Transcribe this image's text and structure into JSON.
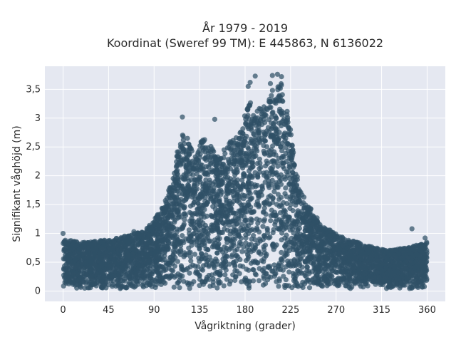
{
  "chart_data": {
    "type": "scatter",
    "title_line1": "År 1979 - 2019",
    "title_line2": "Koordinat (Sweref 99 TM): E 445863, N 6136022",
    "xlabel": "Vågriktning (grader)",
    "ylabel": "Signifikant våghöjd (m)",
    "xlim": [
      -18,
      378
    ],
    "ylim": [
      -0.18,
      3.9
    ],
    "xticks": [
      0,
      45,
      90,
      135,
      180,
      225,
      270,
      315,
      360
    ],
    "xtick_labels": [
      "0",
      "45",
      "90",
      "135",
      "180",
      "225",
      "270",
      "315",
      "360"
    ],
    "yticks": [
      0,
      0.5,
      1,
      1.5,
      2,
      2.5,
      3,
      3.5
    ],
    "ytick_labels": [
      "0",
      "0,5",
      "1",
      "1,5",
      "2",
      "2,5",
      "3",
      "3,5"
    ],
    "grid": true,
    "legend": "none",
    "point_color": "#2f5066",
    "background_color": "#e5e8f1",
    "envelope": {
      "x": [
        0,
        20,
        40,
        60,
        80,
        90,
        100,
        110,
        115,
        120,
        125,
        130,
        135,
        140,
        145,
        150,
        155,
        160,
        165,
        170,
        175,
        180,
        185,
        190,
        195,
        200,
        205,
        210,
        215,
        220,
        225,
        230,
        240,
        250,
        260,
        270,
        280,
        300,
        320,
        340,
        360
      ],
      "y_max": [
        0.9,
        0.85,
        0.88,
        0.95,
        1.05,
        1.25,
        1.5,
        2.1,
        2.65,
        2.75,
        2.6,
        2.35,
        2.55,
        2.7,
        2.55,
        2.4,
        2.3,
        2.5,
        2.6,
        2.7,
        2.75,
        3.1,
        3.3,
        3.15,
        3.2,
        3.25,
        3.5,
        3.55,
        3.65,
        3.3,
        2.8,
        2.1,
        1.55,
        1.3,
        1.1,
        1.0,
        0.9,
        0.8,
        0.7,
        0.75,
        0.85
      ]
    },
    "outliers": [
      {
        "x": 0,
        "y": 1.0
      },
      {
        "x": 70,
        "y": 1.03
      },
      {
        "x": 118,
        "y": 3.02
      },
      {
        "x": 150,
        "y": 2.98
      },
      {
        "x": 183,
        "y": 3.55
      },
      {
        "x": 185,
        "y": 3.62
      },
      {
        "x": 190,
        "y": 3.73
      },
      {
        "x": 205,
        "y": 3.6
      },
      {
        "x": 207,
        "y": 3.74
      },
      {
        "x": 212,
        "y": 3.76
      },
      {
        "x": 216,
        "y": 3.72
      },
      {
        "x": 345,
        "y": 1.08
      },
      {
        "x": 358,
        "y": 0.92
      }
    ]
  }
}
